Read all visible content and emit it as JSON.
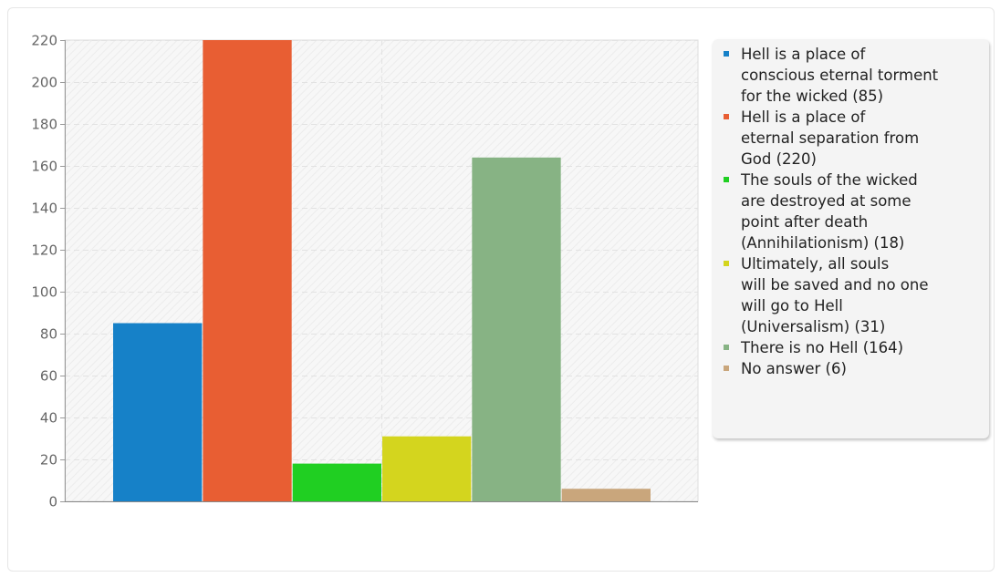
{
  "chart_data": {
    "type": "bar",
    "ylim": [
      0,
      220
    ],
    "yticks": [
      "0",
      "20",
      "40",
      "60",
      "80",
      "100",
      "120",
      "140",
      "160",
      "180",
      "200",
      "220"
    ],
    "grid": true,
    "legend_position": "right",
    "series": [
      {
        "name": "Hell is a place of\nconscious eternal torment\nfor the wicked (85)",
        "value": 85,
        "color": "#1681c8"
      },
      {
        "name": "Hell is a place of\neternal separation from\nGod (220)",
        "value": 220,
        "color": "#e85e33"
      },
      {
        "name": "The souls of the wicked\nare destroyed at some\npoint after death\n(Annihilationism) (18)",
        "value": 18,
        "color": "#20cf22"
      },
      {
        "name": "Ultimately, all souls\nwill be saved and no one\nwill go to Hell\n(Universalism) (31)",
        "value": 31,
        "color": "#d4d51e"
      },
      {
        "name": "There is no Hell (164)",
        "value": 164,
        "color": "#87b384"
      },
      {
        "name": "No answer (6)",
        "value": 6,
        "color": "#c9a67c"
      }
    ]
  }
}
